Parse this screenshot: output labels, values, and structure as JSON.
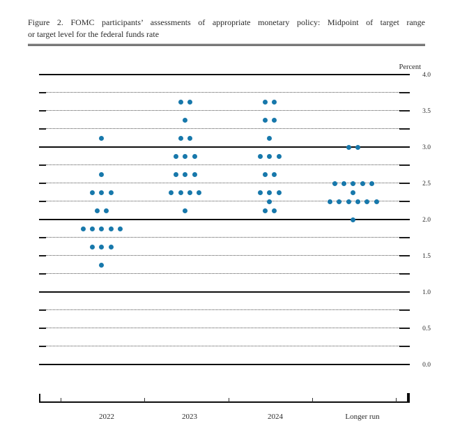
{
  "figure": {
    "title_line1": "Figure 2.  FOMC participants’ assessments of appropriate monetary policy:  Midpoint of target range",
    "title_line2": "or target level for the federal funds rate"
  },
  "chart_data": {
    "type": "scatter",
    "variant": "fomc-dot-plot",
    "title": "FOMC participants’ assessments of appropriate monetary policy: Midpoint of target range or target level for the federal funds rate",
    "ylabel": "Percent",
    "ylim": [
      0.0,
      4.0
    ],
    "gridline_step": 0.25,
    "solid_gridlines": [
      0.0,
      1.0,
      2.0,
      3.0,
      4.0
    ],
    "ytick_values": [
      4.0,
      3.5,
      3.0,
      2.5,
      2.0,
      1.5,
      1.0,
      0.5,
      0.0
    ],
    "ytick_labels": [
      "4.0",
      "3.5",
      "3.0",
      "2.5",
      "2.0",
      "1.5",
      "1.0",
      "0.5",
      "0.0"
    ],
    "legend_position": "none",
    "grid": "dotted-quarters-solid-integers",
    "dot_color": "#1778ab",
    "categories": [
      "2022",
      "2023",
      "2024",
      "Longer run"
    ],
    "series": [
      {
        "name": "2022",
        "dots": [
          {
            "rate": 3.125,
            "count": 1
          },
          {
            "rate": 2.625,
            "count": 1
          },
          {
            "rate": 2.375,
            "count": 3
          },
          {
            "rate": 2.125,
            "count": 2
          },
          {
            "rate": 1.875,
            "count": 5
          },
          {
            "rate": 1.625,
            "count": 3
          },
          {
            "rate": 1.375,
            "count": 1
          }
        ]
      },
      {
        "name": "2023",
        "dots": [
          {
            "rate": 3.625,
            "count": 2
          },
          {
            "rate": 3.375,
            "count": 1
          },
          {
            "rate": 3.125,
            "count": 2
          },
          {
            "rate": 2.875,
            "count": 3
          },
          {
            "rate": 2.625,
            "count": 3
          },
          {
            "rate": 2.375,
            "count": 4
          },
          {
            "rate": 2.125,
            "count": 1
          }
        ]
      },
      {
        "name": "2024",
        "dots": [
          {
            "rate": 3.625,
            "count": 2
          },
          {
            "rate": 3.375,
            "count": 2
          },
          {
            "rate": 3.125,
            "count": 1
          },
          {
            "rate": 2.875,
            "count": 3
          },
          {
            "rate": 2.625,
            "count": 2
          },
          {
            "rate": 2.375,
            "count": 3
          },
          {
            "rate": 2.25,
            "count": 1
          },
          {
            "rate": 2.125,
            "count": 2
          }
        ]
      },
      {
        "name": "Longer run",
        "dots": [
          {
            "rate": 3.0,
            "count": 2
          },
          {
            "rate": 2.5,
            "count": 5
          },
          {
            "rate": 2.375,
            "count": 1
          },
          {
            "rate": 2.25,
            "count": 6
          },
          {
            "rate": 2.0,
            "count": 1
          }
        ]
      }
    ]
  }
}
